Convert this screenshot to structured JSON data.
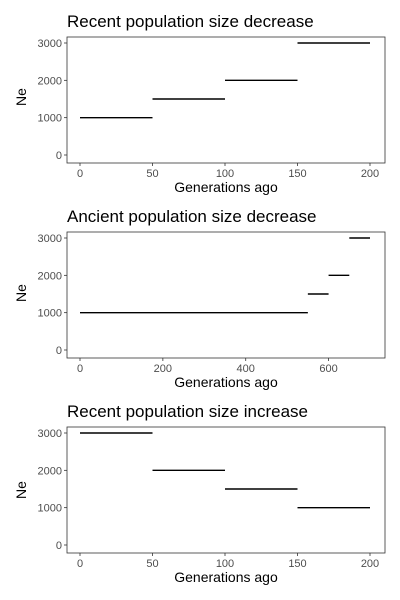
{
  "chart_data": [
    {
      "type": "line",
      "title": "Recent population size decrease",
      "xlabel": "Generations ago",
      "ylabel": "Ne",
      "xlim": [
        0,
        200
      ],
      "ylim": [
        0,
        3000
      ],
      "xticks": [
        0,
        50,
        100,
        150,
        200
      ],
      "yticks": [
        0,
        1000,
        2000,
        3000
      ],
      "grid": false,
      "segments": [
        {
          "x": [
            0,
            50
          ],
          "y": 1000
        },
        {
          "x": [
            50,
            100
          ],
          "y": 1500
        },
        {
          "x": [
            100,
            150
          ],
          "y": 2000
        },
        {
          "x": [
            150,
            200
          ],
          "y": 3000
        }
      ]
    },
    {
      "type": "line",
      "title": "Ancient population size decrease",
      "xlabel": "Generations ago",
      "ylabel": "Ne",
      "xlim": [
        0,
        700
      ],
      "ylim": [
        0,
        3000
      ],
      "xticks": [
        0,
        200,
        400,
        600
      ],
      "yticks": [
        0,
        1000,
        2000,
        3000
      ],
      "grid": false,
      "segments": [
        {
          "x": [
            0,
            550
          ],
          "y": 1000
        },
        {
          "x": [
            550,
            600
          ],
          "y": 1500
        },
        {
          "x": [
            600,
            650
          ],
          "y": 2000
        },
        {
          "x": [
            650,
            700
          ],
          "y": 3000
        }
      ]
    },
    {
      "type": "line",
      "title": "Recent population size increase",
      "xlabel": "Generations ago",
      "ylabel": "Ne",
      "xlim": [
        0,
        200
      ],
      "ylim": [
        0,
        3000
      ],
      "xticks": [
        0,
        50,
        100,
        150,
        200
      ],
      "yticks": [
        0,
        1000,
        2000,
        3000
      ],
      "grid": false,
      "segments": [
        {
          "x": [
            0,
            50
          ],
          "y": 3000
        },
        {
          "x": [
            50,
            100
          ],
          "y": 2000
        },
        {
          "x": [
            100,
            150
          ],
          "y": 1500
        },
        {
          "x": [
            150,
            200
          ],
          "y": 1000
        }
      ]
    }
  ],
  "colors": {
    "line": "#000000",
    "border": "#333333",
    "tick_text": "#4d4d4d",
    "background": "#ffffff"
  }
}
